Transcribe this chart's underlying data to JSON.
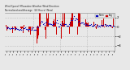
{
  "title_line1": "Wind Speed  Milwaukee Weather Wind Direction",
  "title_line2": "Normalized and Average  (24 Hours) (New)",
  "bar_color": "#cc0000",
  "dot_color": "#0000bb",
  "legend_label1": "Norm",
  "legend_label2": "Avg",
  "background_color": "#e8e8e8",
  "plot_bg_color": "#e8e8e8",
  "grid_color": "#aaaaaa",
  "ylim": [
    -5,
    3
  ],
  "n_bars": 120,
  "seed": 7
}
